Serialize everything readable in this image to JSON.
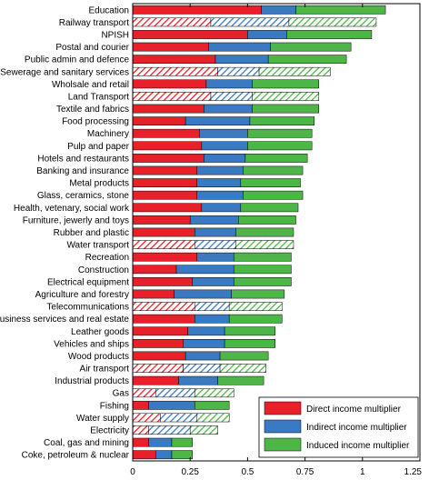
{
  "chart_data": {
    "type": "bar",
    "orientation": "horizontal",
    "stacked": true,
    "xlim": [
      0,
      1.25
    ],
    "xticks": [
      "0",
      "0.25",
      "0.5",
      "0.75",
      "1",
      "1.25"
    ],
    "xtick_values": [
      0,
      0.25,
      0.5,
      0.75,
      1,
      1.25
    ],
    "grid": false,
    "legend_position": "bottom-right",
    "categories": [
      "Education",
      "Railway transport",
      "NPISH",
      "Postal and courier",
      "Public admin and defence",
      "Sewerage and sanitary services",
      "Wholsale and retail",
      "Land Transport",
      "Textile and fabrics",
      "Food processing",
      "Machinery",
      "Pulp and paper",
      "Hotels and restaurants",
      "Banking and insurance",
      "Metal products",
      "Glass, ceramics, stone",
      "Health, vetenary, social work",
      "Furniture, jewerly and toys",
      "Rubber and plastic",
      "Water transport",
      "Recreation",
      "Construction",
      "Electrical equipment",
      "Agriculture and forestry",
      "Telecommunications",
      "Business services and real estate",
      "Leather goods",
      "Vehicles and ships",
      "Wood products",
      "Air transport",
      "Industrial products",
      "Gas",
      "Fishing",
      "Water supply",
      "Electricity",
      "Coal, gas and mining",
      "Coke, petroleum & nuclear"
    ],
    "hatched": [
      false,
      true,
      false,
      false,
      false,
      true,
      false,
      true,
      false,
      false,
      false,
      false,
      false,
      false,
      false,
      false,
      false,
      false,
      false,
      true,
      false,
      false,
      false,
      false,
      true,
      false,
      false,
      false,
      false,
      true,
      false,
      true,
      false,
      true,
      true,
      false,
      false
    ],
    "series": [
      {
        "name": "Direct income multiplier",
        "color": "#e8202a",
        "values": [
          0.56,
          0.34,
          0.5,
          0.33,
          0.36,
          0.37,
          0.32,
          0.34,
          0.31,
          0.23,
          0.29,
          0.3,
          0.31,
          0.28,
          0.28,
          0.28,
          0.3,
          0.25,
          0.27,
          0.27,
          0.28,
          0.19,
          0.26,
          0.18,
          0.27,
          0.27,
          0.24,
          0.22,
          0.23,
          0.22,
          0.2,
          0.1,
          0.07,
          0.12,
          0.07,
          0.07,
          0.1
        ]
      },
      {
        "name": "Indirect income multiplier",
        "color": "#3a7ac2",
        "values": [
          0.15,
          0.34,
          0.17,
          0.27,
          0.23,
          0.18,
          0.2,
          0.18,
          0.21,
          0.28,
          0.21,
          0.2,
          0.18,
          0.2,
          0.19,
          0.2,
          0.17,
          0.21,
          0.18,
          0.18,
          0.16,
          0.25,
          0.18,
          0.25,
          0.15,
          0.15,
          0.16,
          0.18,
          0.15,
          0.16,
          0.17,
          0.17,
          0.2,
          0.16,
          0.18,
          0.1,
          0.07
        ]
      },
      {
        "name": "Induced income multiplier",
        "color": "#4cb747",
        "values": [
          0.39,
          0.38,
          0.37,
          0.35,
          0.34,
          0.31,
          0.29,
          0.29,
          0.29,
          0.28,
          0.28,
          0.28,
          0.27,
          0.26,
          0.26,
          0.26,
          0.25,
          0.25,
          0.25,
          0.25,
          0.25,
          0.25,
          0.25,
          0.23,
          0.23,
          0.23,
          0.22,
          0.22,
          0.21,
          0.2,
          0.2,
          0.17,
          0.15,
          0.14,
          0.12,
          0.09,
          0.09
        ]
      }
    ]
  }
}
